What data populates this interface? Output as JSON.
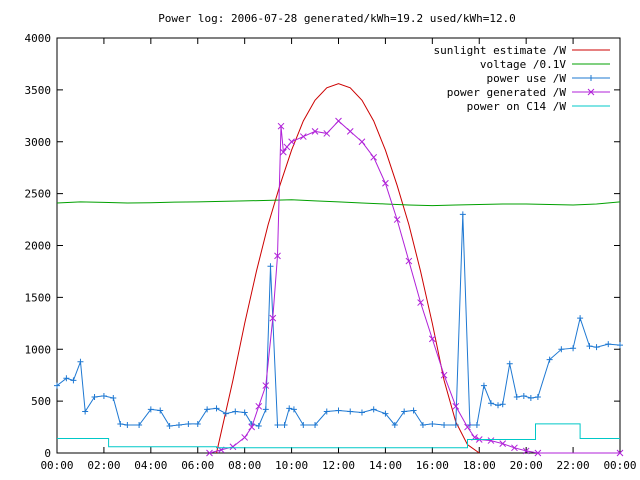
{
  "chart_data": {
    "type": "line",
    "title": "Power log: 2006-07-28 generated/kWh=19.2 used/kWh=12.0",
    "xlabel": "",
    "ylabel": "",
    "x_ticks": [
      "00:00",
      "02:00",
      "04:00",
      "06:00",
      "08:00",
      "10:00",
      "12:00",
      "14:00",
      "16:00",
      "18:00",
      "20:00",
      "22:00",
      "00:00"
    ],
    "y_ticks": [
      "0",
      "500",
      "1000",
      "1500",
      "2000",
      "2500",
      "3000",
      "3500",
      "4000"
    ],
    "xlim": [
      0,
      24
    ],
    "ylim": [
      0,
      4000
    ],
    "grid": false,
    "legend_position": "top-right",
    "series": [
      {
        "name": "sunlight estimate /W",
        "color": "#cc0000",
        "marker": "none",
        "x": [
          6.8,
          7.5,
          8,
          8.5,
          9,
          9.5,
          10,
          10.5,
          11,
          11.5,
          12,
          12.5,
          13,
          13.5,
          14,
          14.5,
          15,
          15.5,
          16,
          16.5,
          17,
          17.5,
          18
        ],
        "y": [
          0,
          700,
          1250,
          1750,
          2200,
          2580,
          2920,
          3200,
          3400,
          3520,
          3560,
          3520,
          3400,
          3200,
          2920,
          2580,
          2200,
          1750,
          1250,
          700,
          300,
          80,
          0
        ]
      },
      {
        "name": "voltage /0.1V",
        "color": "#00a000",
        "marker": "none",
        "x": [
          0,
          1,
          2,
          3,
          4,
          5,
          6,
          7,
          8,
          9,
          10,
          11,
          12,
          13,
          14,
          15,
          16,
          17,
          18,
          19,
          20,
          21,
          22,
          23,
          24
        ],
        "y": [
          2410,
          2420,
          2415,
          2410,
          2412,
          2418,
          2420,
          2425,
          2430,
          2435,
          2440,
          2430,
          2420,
          2410,
          2400,
          2390,
          2385,
          2390,
          2395,
          2400,
          2400,
          2395,
          2390,
          2400,
          2420
        ]
      },
      {
        "name": "power use /W",
        "color": "#1e78d2",
        "marker": "plus",
        "x": [
          0,
          0.4,
          0.7,
          1,
          1.2,
          1.6,
          2,
          2.4,
          2.7,
          3,
          3.5,
          4,
          4.4,
          4.8,
          5.2,
          5.6,
          6,
          6.4,
          6.8,
          7.2,
          7.6,
          8,
          8.3,
          8.6,
          8.9,
          9.1,
          9.4,
          9.7,
          9.9,
          10.1,
          10.5,
          11,
          11.5,
          12,
          12.5,
          13,
          13.5,
          14,
          14.4,
          14.8,
          15.2,
          15.6,
          16,
          16.5,
          17,
          17.3,
          17.6,
          17.9,
          18.2,
          18.5,
          18.8,
          19,
          19.3,
          19.6,
          19.9,
          20.2,
          20.5,
          21,
          21.5,
          22,
          22.3,
          22.7,
          23,
          23.5,
          24
        ],
        "y": [
          650,
          720,
          700,
          880,
          400,
          540,
          550,
          530,
          280,
          270,
          270,
          420,
          410,
          260,
          270,
          280,
          280,
          420,
          430,
          380,
          400,
          390,
          280,
          260,
          420,
          1800,
          270,
          270,
          430,
          420,
          270,
          270,
          400,
          410,
          400,
          390,
          420,
          380,
          270,
          400,
          410,
          270,
          280,
          270,
          270,
          2300,
          270,
          270,
          650,
          480,
          460,
          470,
          860,
          540,
          550,
          530,
          540,
          900,
          1000,
          1010,
          1300,
          1030,
          1020,
          1050,
          1040
        ]
      },
      {
        "name": "power generated /W",
        "color": "#b020d8",
        "marker": "cross",
        "x": [
          6.5,
          7,
          7.5,
          8,
          8.3,
          8.6,
          8.9,
          9.2,
          9.4,
          9.55,
          9.65,
          9.8,
          10,
          10.5,
          11,
          11.5,
          12,
          12.5,
          13,
          13.5,
          14,
          14.5,
          15,
          15.5,
          16,
          16.5,
          17,
          17.5,
          17.8,
          18,
          18.5,
          19,
          19.5,
          20,
          20.5,
          24
        ],
        "y": [
          0,
          30,
          60,
          150,
          250,
          450,
          650,
          1300,
          1900,
          3150,
          2900,
          2950,
          3000,
          3050,
          3100,
          3080,
          3200,
          3100,
          3000,
          2850,
          2600,
          2250,
          1850,
          1450,
          1100,
          750,
          450,
          250,
          150,
          130,
          120,
          90,
          50,
          20,
          0,
          0
        ]
      },
      {
        "name": "power on C14 /W",
        "color": "#00c8c8",
        "marker": "none",
        "x": [
          0,
          2.2,
          2.2,
          6.8,
          6.8,
          17.5,
          17.5,
          20.4,
          20.4,
          22.3,
          22.3,
          24
        ],
        "y": [
          140,
          140,
          60,
          60,
          50,
          50,
          130,
          130,
          280,
          280,
          140,
          140
        ]
      }
    ]
  }
}
